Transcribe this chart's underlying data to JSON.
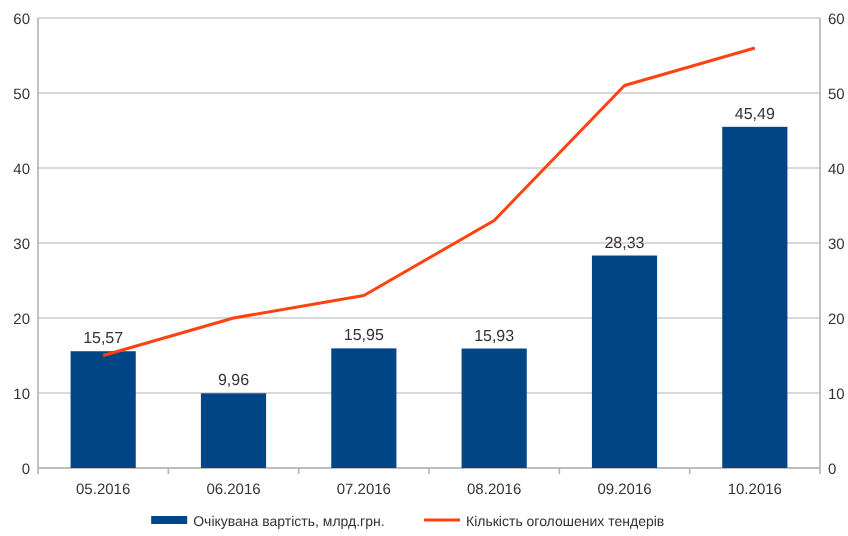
{
  "chart_data": {
    "type": "bar",
    "categories": [
      "05.2016",
      "06.2016",
      "07.2016",
      "08.2016",
      "09.2016",
      "10.2016"
    ],
    "series": [
      {
        "name": "Очікувана вартість, млрд.грн.",
        "color": "#004586",
        "values": [
          15.57,
          9.96,
          15.95,
          15.93,
          28.33,
          45.49
        ],
        "value_labels": [
          "15,57",
          "9,96",
          "15,95",
          "15,93",
          "28,33",
          "45,49"
        ]
      },
      {
        "name": "Кількість оголошених тендерів",
        "type": "line",
        "color": "#ff420e",
        "values": [
          15,
          20,
          23,
          33,
          51,
          56
        ]
      }
    ],
    "ylim": [
      0,
      60
    ],
    "yticks": [
      0,
      10,
      20,
      30,
      40,
      50,
      60
    ],
    "y2lim": [
      0,
      60
    ],
    "y2ticks": [
      0,
      10,
      20,
      30,
      40,
      50,
      60
    ],
    "grid": "y",
    "legend": "bottom",
    "line_style": "solid",
    "marker": "none"
  }
}
